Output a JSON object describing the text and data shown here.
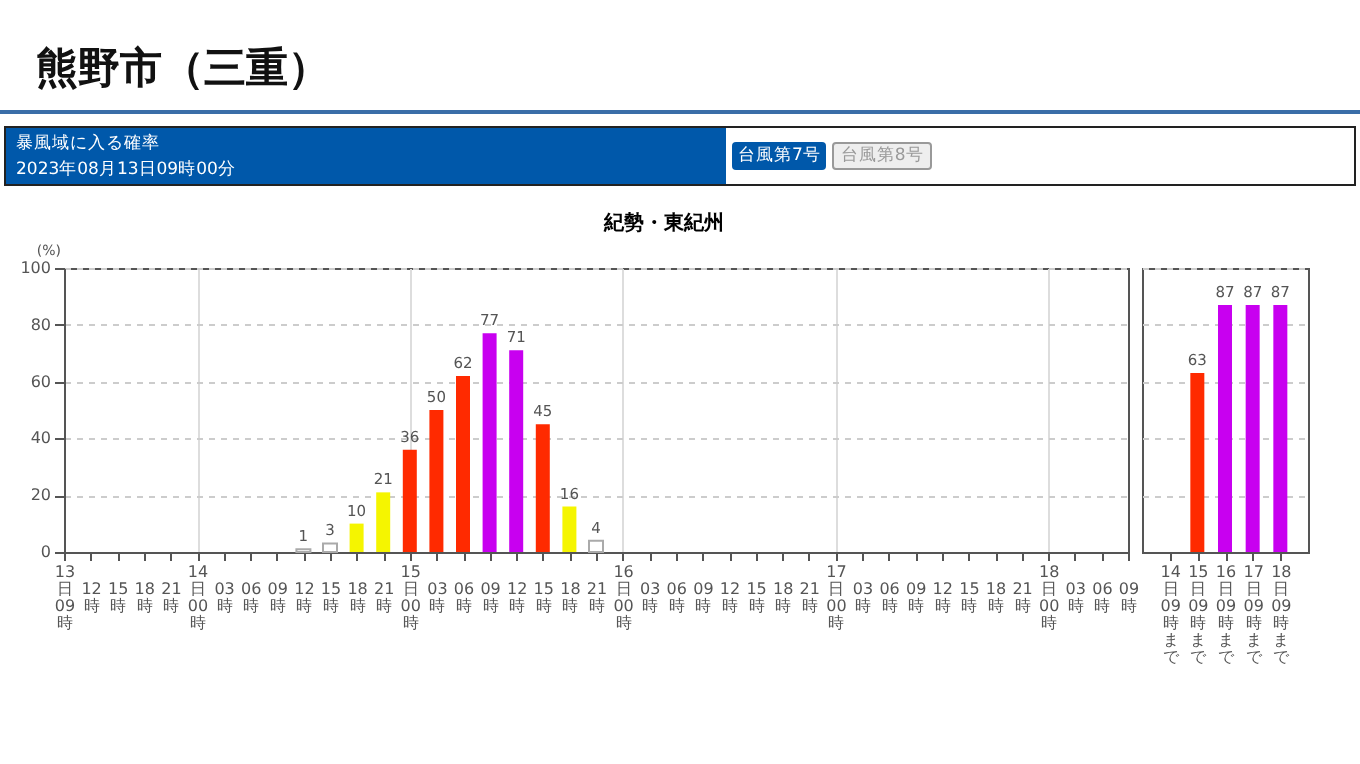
{
  "chart_data": [
    {
      "type": "bar",
      "title": "紀勢・東紀州",
      "ylabel": "(%)",
      "annotations": [
        "熊野市（三重）",
        "暴風域に入る確率",
        "2023年08月13日09時00分",
        "台風第7号",
        "台風第8号"
      ],
      "categories": [
        "13日09時",
        "12時",
        "15時",
        "18時",
        "21時",
        "14日00時",
        "03時",
        "06時",
        "09時",
        "12時",
        "15時",
        "18時",
        "21時",
        "15日00時",
        "03時",
        "06時",
        "09時",
        "12時",
        "15時",
        "18時",
        "21時",
        "16日00時",
        "03時",
        "06時",
        "09時",
        "12時",
        "15時",
        "18時",
        "21時",
        "17日00時",
        "03時",
        "06時",
        "09時",
        "12時",
        "15時",
        "18時",
        "21時",
        "18日00時",
        "03時",
        "06時",
        "09時"
      ],
      "values": [
        null,
        null,
        null,
        null,
        null,
        null,
        null,
        null,
        null,
        1,
        3,
        10,
        21,
        36,
        50,
        62,
        77,
        71,
        45,
        16,
        4,
        null,
        null,
        null,
        null,
        null,
        null,
        null,
        null,
        null,
        null,
        null,
        null,
        null,
        null,
        null,
        null,
        null,
        null,
        null,
        null
      ],
      "colors": [
        null,
        null,
        null,
        null,
        null,
        null,
        null,
        null,
        null,
        "#ffffff",
        "#ffffff",
        "#f5f500",
        "#f5f500",
        "#ff2a00",
        "#ff2a00",
        "#ff2a00",
        "#c800f0",
        "#c800f0",
        "#ff2a00",
        "#f5f500",
        "#ffffff",
        null,
        null,
        null,
        null,
        null,
        null,
        null,
        null,
        null,
        null,
        null,
        null,
        null,
        null,
        null,
        null,
        null,
        null,
        null,
        null
      ],
      "data_labels": true,
      "ylim": [
        0,
        100
      ],
      "yticks": [
        0,
        20,
        40,
        60,
        80,
        100
      ],
      "grid": true
    },
    {
      "type": "bar",
      "categories": [
        "14日09時まで",
        "15日09時まで",
        "16日09時まで",
        "17日09時まで",
        "18日09時まで"
      ],
      "values": [
        null,
        63,
        87,
        87,
        87
      ],
      "colors": [
        null,
        "#ff2a00",
        "#c800f0",
        "#c800f0",
        "#c800f0"
      ],
      "data_labels": true,
      "ylim": [
        0,
        100
      ],
      "yticks": [
        0,
        20,
        40,
        60,
        80,
        100
      ],
      "grid": "y",
      "tick_labels": "x"
    }
  ]
}
